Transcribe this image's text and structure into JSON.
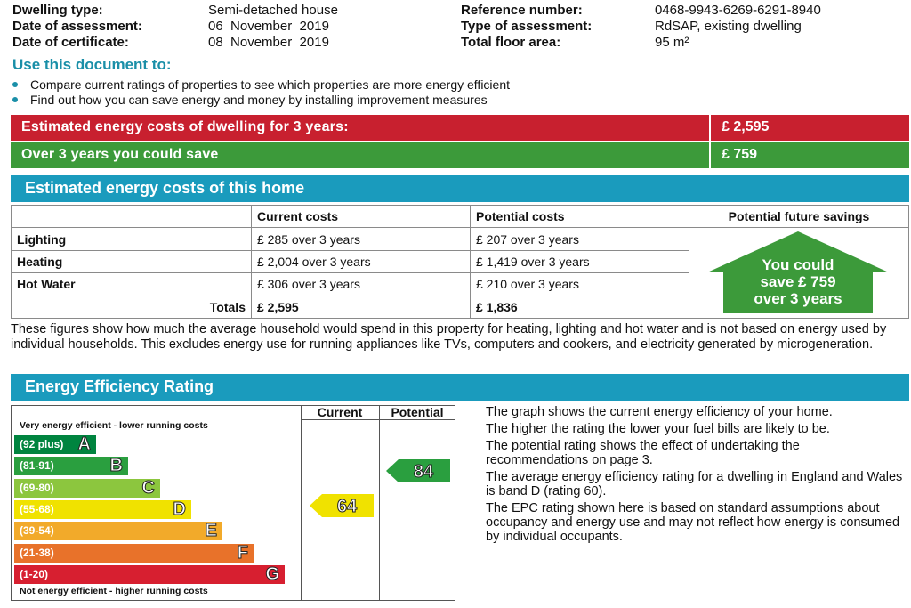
{
  "header": {
    "dwelling_type_label": "Dwelling type:",
    "dwelling_type_value": "Semi-detached house",
    "date_assessment_label": "Date of assessment:",
    "date_assessment_value": "06  November  2019",
    "date_certificate_label": "Date of certificate:",
    "date_certificate_value": "08  November  2019",
    "reference_label": "Reference number:",
    "reference_value": "0468-9943-6269-6291-8940",
    "assessment_type_label": "Type of assessment:",
    "assessment_type_value": "RdSAP, existing dwelling",
    "floor_area_label": "Total floor area:",
    "floor_area_value": "95 m²"
  },
  "use_doc": {
    "title": "Use this document to:",
    "bullets": [
      "Compare current ratings of properties to see which properties are more energy efficient",
      "Find out how you can save energy and money by installing improvement measures"
    ]
  },
  "summary": {
    "cost_label": "Estimated energy costs of dwelling for 3 years:",
    "cost_value": "£ 2,595",
    "save_label": "Over 3 years you could save",
    "save_value": "£ 759",
    "colors": {
      "red": "#c8202f",
      "green": "#3c9a3a"
    }
  },
  "costs": {
    "title": "Estimated energy costs of this home",
    "headers": [
      "",
      "Current costs",
      "Potential costs",
      "Potential future savings"
    ],
    "rows": [
      {
        "label": "Lighting",
        "current": "£ 285 over 3 years",
        "potential": "£ 207 over 3 years"
      },
      {
        "label": "Heating",
        "current": "£ 2,004 over 3 years",
        "potential": "£ 1,419 over 3 years"
      },
      {
        "label": "Hot Water",
        "current": "£ 306 over 3 years",
        "potential": "£ 210 over 3 years"
      }
    ],
    "totals_label": "Totals",
    "totals_current": "£ 2,595",
    "totals_potential": "£ 1,836",
    "savings_arrow": [
      "You could",
      "save £ 759",
      "over 3 years"
    ]
  },
  "costs_note": "These figures show how much the average household would spend in this property for heating, lighting and hot water and is not based on energy used by individual households. This excludes energy use for running appliances like TVs, computers and cookers, and electricity generated by microgeneration.",
  "rating": {
    "title": "Energy Efficiency Rating",
    "top_caption": "Very energy efficient - lower running costs",
    "bottom_caption": "Not energy efficient - higher running costs",
    "col_current": "Current",
    "col_potential": "Potential",
    "bands": [
      {
        "range": "(92 plus)",
        "letter": "A",
        "color": "#00843f"
      },
      {
        "range": "(81-91)",
        "letter": "B",
        "color": "#2a9f3f"
      },
      {
        "range": "(69-80)",
        "letter": "C",
        "color": "#8cc63e"
      },
      {
        "range": "(55-68)",
        "letter": "D",
        "color": "#f0e200"
      },
      {
        "range": "(39-54)",
        "letter": "E",
        "color": "#f2aa2a"
      },
      {
        "range": "(21-38)",
        "letter": "F",
        "color": "#e8722a"
      },
      {
        "range": "(1-20)",
        "letter": "G",
        "color": "#d71f30"
      }
    ],
    "current_value": "64",
    "potential_value": "84",
    "current_color": "#f0e200",
    "potential_color": "#2a9f3f",
    "paragraphs": [
      "The graph shows the current energy efficiency of your home.",
      "The higher the rating the lower your fuel bills are likely to be.",
      "The potential rating shows the effect of undertaking the recommendations on page 3.",
      "The average energy efficiency rating for a dwelling in England and Wales is band D (rating 60).",
      "The EPC rating shown here is based on standard assumptions about occupancy and energy use and may not reflect how energy is consumed by individual occupants."
    ]
  }
}
